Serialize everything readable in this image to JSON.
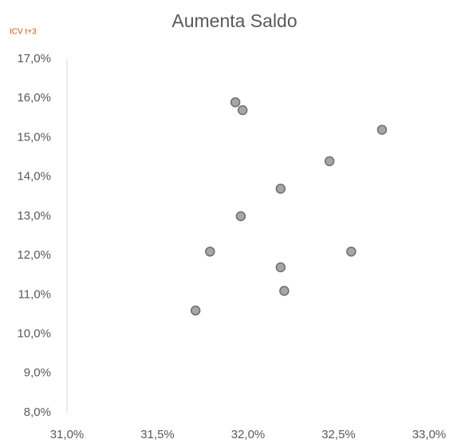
{
  "chart_data": {
    "type": "scatter",
    "title": "Aumenta Saldo",
    "y_label": "ICV t+3",
    "x": [
      31.93,
      31.97,
      32.74,
      32.45,
      32.18,
      31.96,
      31.79,
      32.57,
      32.18,
      32.2,
      31.71
    ],
    "values": [
      15.9,
      15.7,
      15.2,
      14.4,
      13.7,
      13.0,
      12.1,
      12.1,
      11.7,
      11.1,
      10.6
    ],
    "color": "#a6a6a6",
    "edge_color": "#6e6e6e",
    "xlim": [
      31.0,
      33.0
    ],
    "xticks": [
      {
        "value": 31.0,
        "label": "31,0%"
      },
      {
        "value": 31.5,
        "label": "31,5%"
      },
      {
        "value": 32.0,
        "label": "32,0%"
      },
      {
        "value": 32.5,
        "label": "32,5%"
      },
      {
        "value": 33.0,
        "label": "33,0%"
      }
    ],
    "ylim": [
      8.0,
      17.0
    ],
    "yticks": [
      {
        "value": 8.0,
        "label": "8,0%"
      },
      {
        "value": 9.0,
        "label": "9,0%"
      },
      {
        "value": 10.0,
        "label": "10,0%"
      },
      {
        "value": 11.0,
        "label": "11,0%"
      },
      {
        "value": 12.0,
        "label": "12,0%"
      },
      {
        "value": 13.0,
        "label": "13,0%"
      },
      {
        "value": 14.0,
        "label": "14,0%"
      },
      {
        "value": 15.0,
        "label": "15,0%"
      },
      {
        "value": 16.0,
        "label": "16,0%"
      },
      {
        "value": 17.0,
        "label": "17,0%"
      }
    ],
    "grid": false
  }
}
